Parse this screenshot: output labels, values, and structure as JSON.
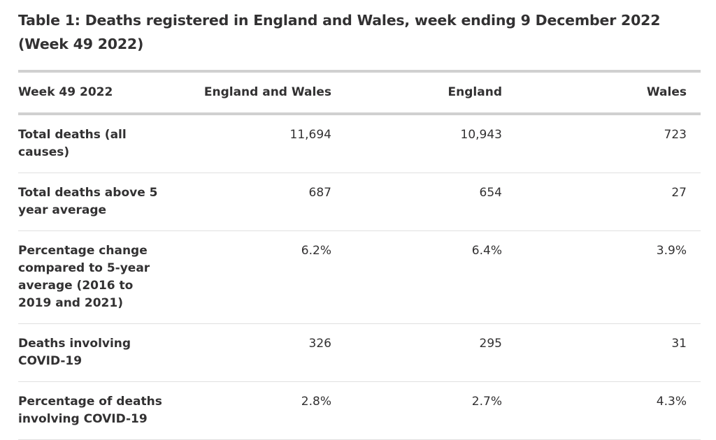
{
  "title": "Table 1: Deaths registered in England and Wales, week ending 9 December 2022 (Week 49 2022)",
  "headers": [
    "Week 49 2022",
    "England and Wales",
    "England",
    "Wales"
  ],
  "rows": [
    {
      "label": "Total deaths (all causes)",
      "values": [
        "11,694",
        "10,943",
        "723"
      ]
    },
    {
      "label": "Total deaths above 5 year average",
      "values": [
        "687",
        "654",
        "27"
      ]
    },
    {
      "label": "Percentage change compared to 5-year average (2016 to 2019 and 2021)",
      "values": [
        "6.2%",
        "6.4%",
        "3.9%"
      ]
    },
    {
      "label": "Deaths involving COVID-19",
      "values": [
        "326",
        "295",
        "31"
      ]
    },
    {
      "label": "Percentage of deaths involving COVID-19",
      "values": [
        "2.8%",
        "2.7%",
        "4.3%"
      ]
    }
  ]
}
